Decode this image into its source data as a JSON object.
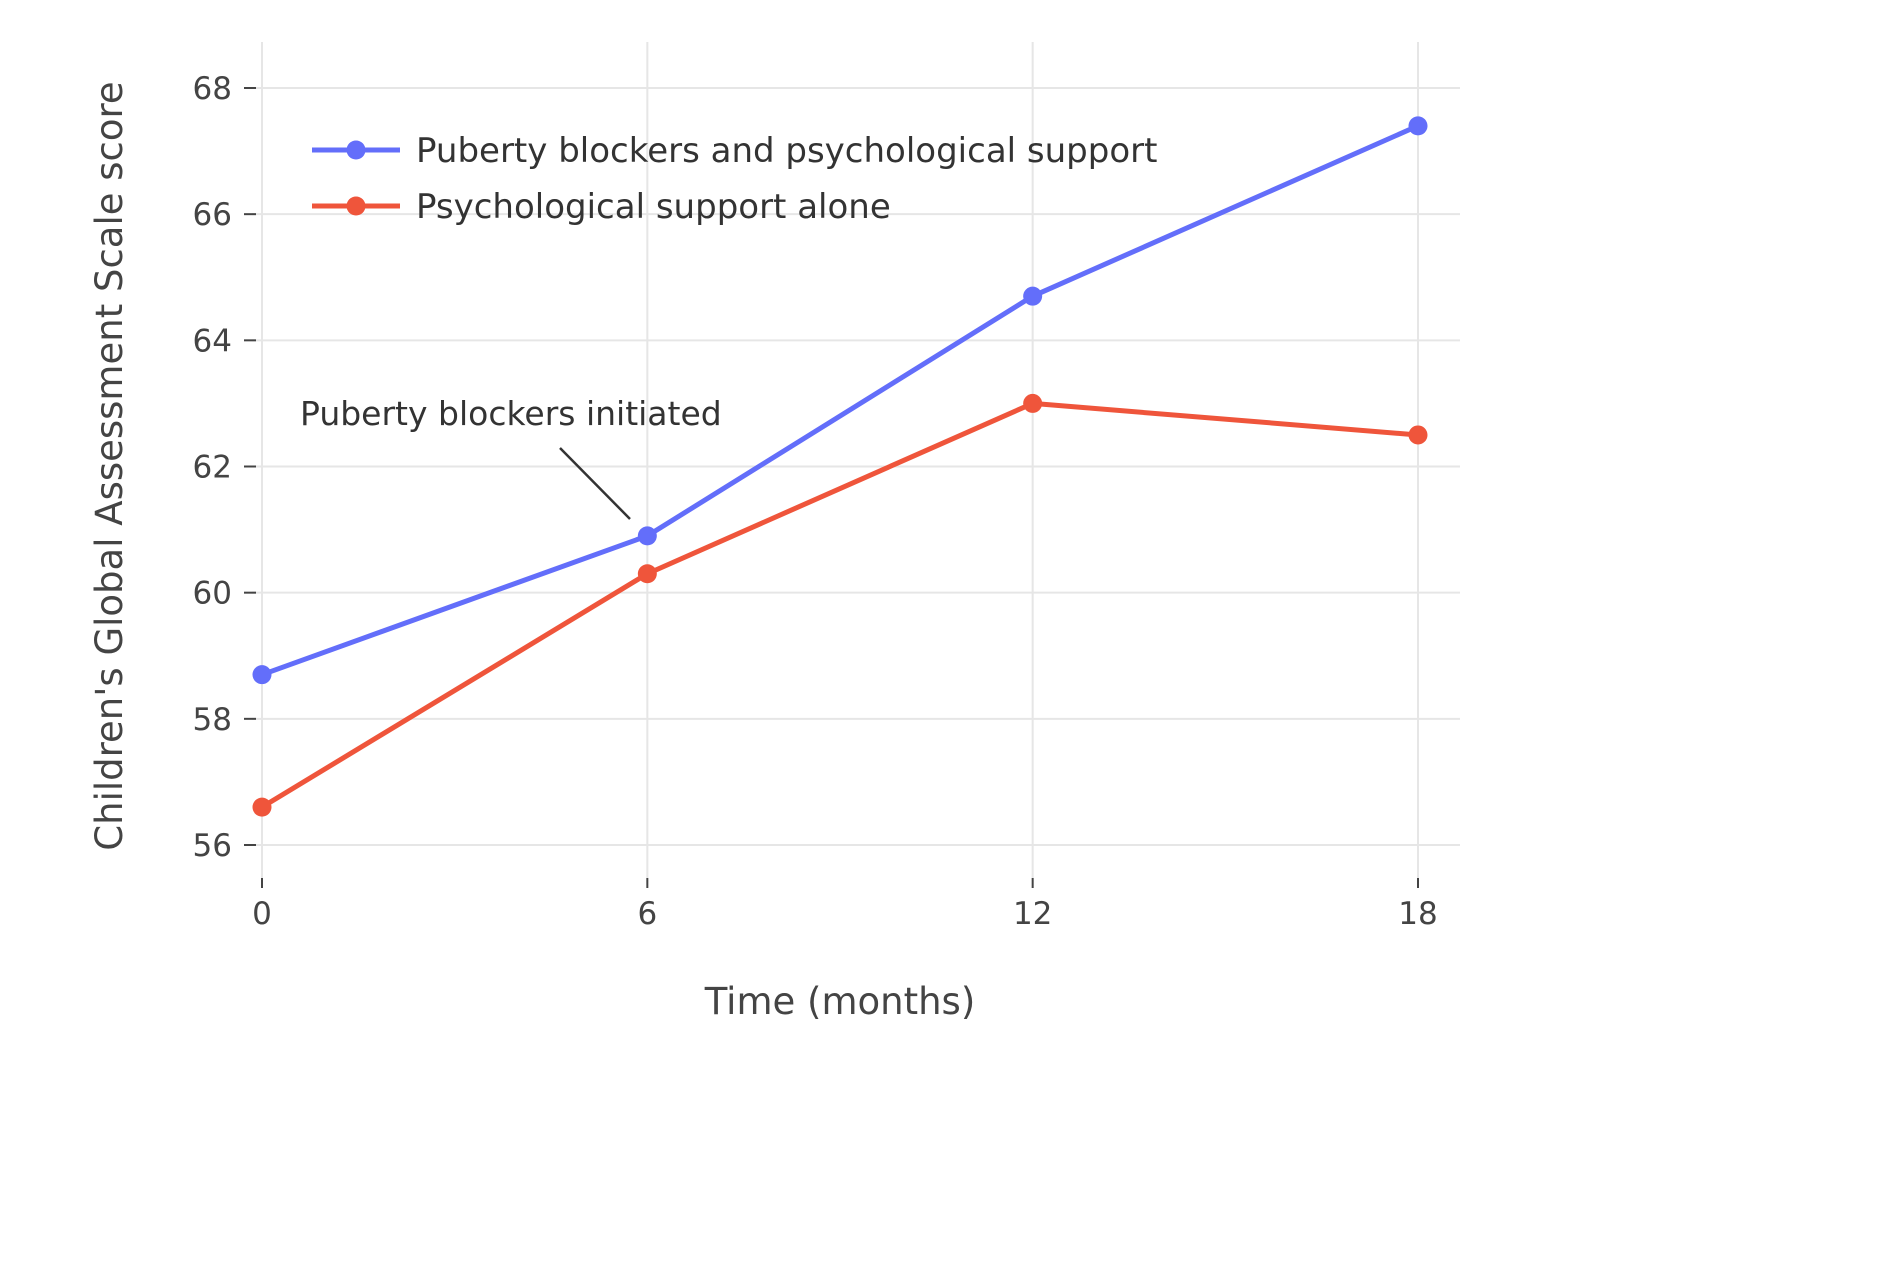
{
  "chart_data": {
    "type": "line",
    "x": [
      0,
      6,
      12,
      18
    ],
    "series": [
      {
        "name": "Puberty blockers and psychological support",
        "values": [
          58.7,
          60.9,
          64.7,
          67.4
        ],
        "color": "#636EFA"
      },
      {
        "name": "Psychological support alone",
        "values": [
          56.6,
          60.3,
          63.0,
          62.5
        ],
        "color": "#EF553B"
      }
    ],
    "title": "",
    "xlabel": "Time (months)",
    "ylabel": "Children's Global Assessment Scale score",
    "xlim": [
      0,
      18
    ],
    "ylim": [
      55.5,
      68.5
    ],
    "xticks": [
      0,
      6,
      12,
      18
    ],
    "yticks": [
      56,
      58,
      60,
      62,
      64,
      66,
      68
    ],
    "grid": true,
    "legend_position": "top-left",
    "annotation": {
      "text": "Puberty blockers initiated",
      "target": {
        "x": 6,
        "y": 60.9
      }
    },
    "colors": {
      "grid": "#e6e6e6",
      "axis_text": "#444444",
      "annotation_line": "#333333"
    }
  }
}
